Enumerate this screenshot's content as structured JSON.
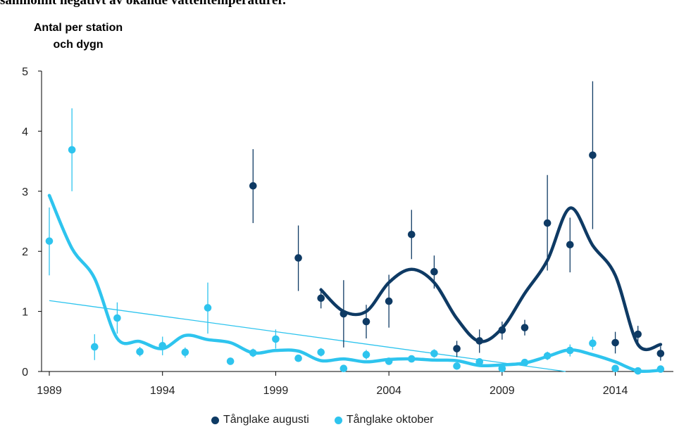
{
  "caption_top": "samholmt negativt av okande vattentemperaturer.",
  "colors": {
    "dark": "#0E3A64",
    "light": "#2EC4EE",
    "axis": "#000000"
  },
  "chart_data": {
    "type": "scatter",
    "title": "",
    "ylabel_lines": [
      "Antal per station",
      "och dygn"
    ],
    "xlabel": "",
    "xlim": [
      1989,
      2016.3
    ],
    "ylim": [
      0,
      5
    ],
    "x_ticks": [
      1989,
      1994,
      1999,
      2004,
      2009,
      2014
    ],
    "y_ticks": [
      0,
      1,
      2,
      3,
      4,
      5
    ],
    "legend_position": "bottom",
    "series": [
      {
        "name": "Tånglake augusti",
        "color": "#0E3A64",
        "points": [
          {
            "x": 1998,
            "y": 3.09,
            "lo": 2.47,
            "hi": 3.7
          },
          {
            "x": 2000,
            "y": 1.89,
            "lo": 1.34,
            "hi": 2.43
          },
          {
            "x": 2001,
            "y": 1.22,
            "lo": 1.05,
            "hi": 1.39
          },
          {
            "x": 2002,
            "y": 0.96,
            "lo": 0.4,
            "hi": 1.52
          },
          {
            "x": 2003,
            "y": 0.83,
            "lo": 0.55,
            "hi": 1.11
          },
          {
            "x": 2004,
            "y": 1.17,
            "lo": 0.73,
            "hi": 1.61
          },
          {
            "x": 2005,
            "y": 2.28,
            "lo": 1.87,
            "hi": 2.69
          },
          {
            "x": 2006,
            "y": 1.66,
            "lo": 1.38,
            "hi": 1.93
          },
          {
            "x": 2007,
            "y": 0.38,
            "lo": 0.24,
            "hi": 0.51
          },
          {
            "x": 2008,
            "y": 0.51,
            "lo": 0.31,
            "hi": 0.7
          },
          {
            "x": 2009,
            "y": 0.69,
            "lo": 0.53,
            "hi": 0.83
          },
          {
            "x": 2010,
            "y": 0.73,
            "lo": 0.6,
            "hi": 0.86
          },
          {
            "x": 2011,
            "y": 2.47,
            "lo": 1.68,
            "hi": 3.27
          },
          {
            "x": 2012,
            "y": 2.11,
            "lo": 1.65,
            "hi": 2.56
          },
          {
            "x": 2013,
            "y": 3.6,
            "lo": 2.37,
            "hi": 4.83
          },
          {
            "x": 2014,
            "y": 0.48,
            "lo": 0.3,
            "hi": 0.66
          },
          {
            "x": 2015,
            "y": 0.62,
            "lo": 0.47,
            "hi": 0.76
          },
          {
            "x": 2016,
            "y": 0.3,
            "lo": 0.18,
            "hi": 0.42
          }
        ],
        "smooth": [
          [
            2001,
            1.36
          ],
          [
            2002,
            1.0
          ],
          [
            2003,
            1.0
          ],
          [
            2004,
            1.48
          ],
          [
            2005,
            1.7
          ],
          [
            2006,
            1.48
          ],
          [
            2007,
            0.88
          ],
          [
            2008,
            0.5
          ],
          [
            2009,
            0.72
          ],
          [
            2010,
            1.3
          ],
          [
            2011,
            1.85
          ],
          [
            2012,
            2.72
          ],
          [
            2013,
            2.1
          ],
          [
            2014,
            1.6
          ],
          [
            2015,
            0.45
          ],
          [
            2016,
            0.45
          ]
        ]
      },
      {
        "name": "Tånglake oktober",
        "color": "#2EC4EE",
        "points": [
          {
            "x": 1989,
            "y": 2.17,
            "lo": 1.6,
            "hi": 2.73
          },
          {
            "x": 1990,
            "y": 3.69,
            "lo": 3.0,
            "hi": 4.38
          },
          {
            "x": 1991,
            "y": 0.41,
            "lo": 0.19,
            "hi": 0.62
          },
          {
            "x": 1992,
            "y": 0.89,
            "lo": 0.63,
            "hi": 1.15
          },
          {
            "x": 1993,
            "y": 0.33,
            "lo": 0.25,
            "hi": 0.41
          },
          {
            "x": 1994,
            "y": 0.43,
            "lo": 0.27,
            "hi": 0.58
          },
          {
            "x": 1995,
            "y": 0.32,
            "lo": 0.23,
            "hi": 0.4
          },
          {
            "x": 1996,
            "y": 1.06,
            "lo": 0.63,
            "hi": 1.48
          },
          {
            "x": 1997,
            "y": 0.17,
            "lo": 0.11,
            "hi": 0.23
          },
          {
            "x": 1998,
            "y": 0.31,
            "lo": 0.24,
            "hi": 0.38
          },
          {
            "x": 1999,
            "y": 0.54,
            "lo": 0.38,
            "hi": 0.7
          },
          {
            "x": 2000,
            "y": 0.22,
            "lo": 0.16,
            "hi": 0.28
          },
          {
            "x": 2001,
            "y": 0.32,
            "lo": 0.25,
            "hi": 0.39
          },
          {
            "x": 2002,
            "y": 0.05,
            "lo": 0.03,
            "hi": 0.07
          },
          {
            "x": 2003,
            "y": 0.28,
            "lo": 0.2,
            "hi": 0.36
          },
          {
            "x": 2004,
            "y": 0.17,
            "lo": 0.12,
            "hi": 0.22
          },
          {
            "x": 2005,
            "y": 0.21,
            "lo": 0.16,
            "hi": 0.26
          },
          {
            "x": 2006,
            "y": 0.3,
            "lo": 0.23,
            "hi": 0.37
          },
          {
            "x": 2007,
            "y": 0.09,
            "lo": 0.06,
            "hi": 0.12
          },
          {
            "x": 2008,
            "y": 0.16,
            "lo": 0.12,
            "hi": 0.2
          },
          {
            "x": 2009,
            "y": 0.05,
            "lo": 0.03,
            "hi": 0.07
          },
          {
            "x": 2010,
            "y": 0.15,
            "lo": 0.11,
            "hi": 0.19
          },
          {
            "x": 2011,
            "y": 0.26,
            "lo": 0.19,
            "hi": 0.33
          },
          {
            "x": 2012,
            "y": 0.35,
            "lo": 0.25,
            "hi": 0.45
          },
          {
            "x": 2013,
            "y": 0.47,
            "lo": 0.36,
            "hi": 0.58
          },
          {
            "x": 2014,
            "y": 0.05,
            "lo": 0.03,
            "hi": 0.07
          },
          {
            "x": 2015,
            "y": 0.01,
            "lo": 0.0,
            "hi": 0.02
          },
          {
            "x": 2016,
            "y": 0.04,
            "lo": 0.02,
            "hi": 0.06
          }
        ],
        "smooth": [
          [
            1989,
            2.93
          ],
          [
            1990,
            2.05
          ],
          [
            1991,
            1.55
          ],
          [
            1992,
            0.55
          ],
          [
            1993,
            0.5
          ],
          [
            1994,
            0.38
          ],
          [
            1995,
            0.6
          ],
          [
            1996,
            0.53
          ],
          [
            1997,
            0.48
          ],
          [
            1998,
            0.31
          ],
          [
            1999,
            0.35
          ],
          [
            2000,
            0.34
          ],
          [
            2001,
            0.18
          ],
          [
            2002,
            0.21
          ],
          [
            2003,
            0.16
          ],
          [
            2004,
            0.2
          ],
          [
            2005,
            0.21
          ],
          [
            2006,
            0.19
          ],
          [
            2007,
            0.18
          ],
          [
            2008,
            0.1
          ],
          [
            2009,
            0.11
          ],
          [
            2010,
            0.14
          ],
          [
            2011,
            0.25
          ],
          [
            2012,
            0.36
          ],
          [
            2013,
            0.28
          ],
          [
            2014,
            0.16
          ],
          [
            2015,
            0.01
          ],
          [
            2016,
            0.02
          ]
        ],
        "trend": [
          [
            1989,
            1.18
          ],
          [
            2011.8,
            0.0
          ]
        ]
      }
    ]
  }
}
